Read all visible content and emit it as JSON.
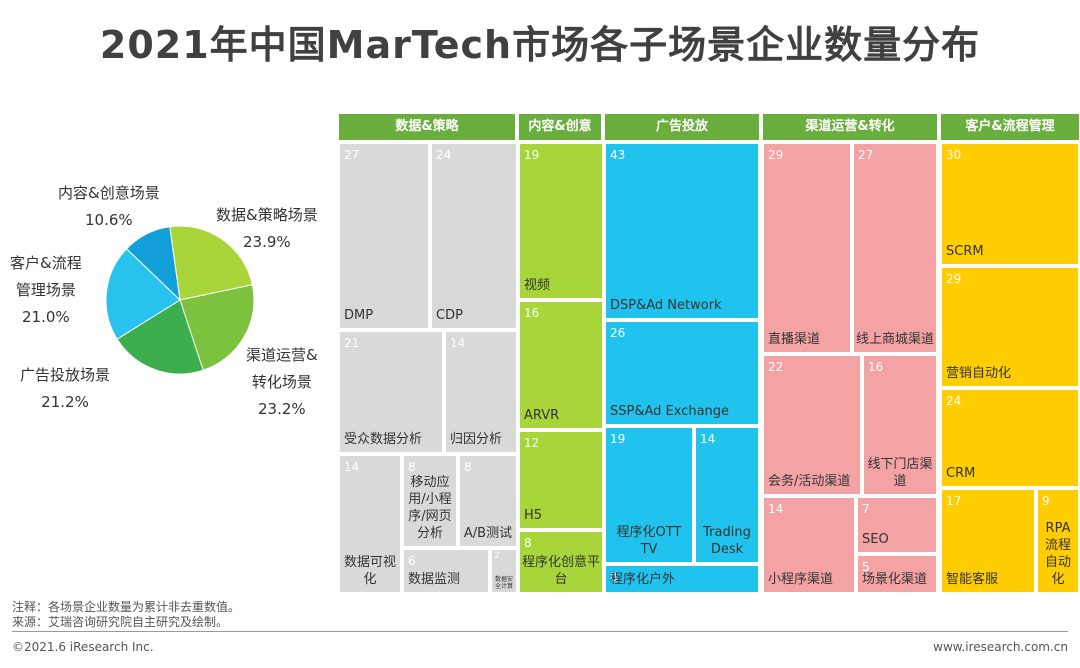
{
  "title": "2021年中国MarTech市场各子场景企业数量分布",
  "chart_data": [
    {
      "type": "pie",
      "slices": [
        {
          "name": "数据&策略场景",
          "value": 23.9,
          "label": "23.9%",
          "color": "#A8D63A"
        },
        {
          "name": "渠道运营&转化场景",
          "value": 23.2,
          "label": "23.2%",
          "color": "#7CC23F"
        },
        {
          "name": "广告投放场景",
          "value": 21.2,
          "label": "21.2%",
          "color": "#3DAE4E"
        },
        {
          "name": "客户&流程管理场景",
          "value": 21.0,
          "label": "21.0%",
          "color": "#27C3EE"
        },
        {
          "name": "内容&创意场景",
          "value": 10.6,
          "label": "10.6%",
          "color": "#129FD9"
        }
      ],
      "labels": {
        "content": [
          "内容&创意场景",
          "10.6%"
        ],
        "data": [
          "数据&策略场景",
          "23.9%"
        ],
        "customer": [
          "客户&流程",
          "管理场景",
          "21.0%"
        ],
        "ad": [
          "广告投放场景",
          "21.2%"
        ],
        "channel": [
          "渠道运营&",
          "转化场景",
          "23.2%"
        ]
      }
    },
    {
      "type": "treemap",
      "groups": [
        {
          "name": "数据&策略",
          "color": "#6AAF3D",
          "items": [
            {
              "label": "DMP",
              "value": 27
            },
            {
              "label": "CDP",
              "value": 24
            },
            {
              "label": "受众数据分析",
              "value": 21
            },
            {
              "label": "归因分析",
              "value": 14
            },
            {
              "label": "数据可视化",
              "value": 14
            },
            {
              "label": "移动应用/小程序/网页分析",
              "value": 8
            },
            {
              "label": "A/B测试",
              "value": 8
            },
            {
              "label": "数据监测",
              "value": 6
            },
            {
              "label": "数据安全计算",
              "value": 2
            }
          ]
        },
        {
          "name": "内容&创意",
          "color": "#6AAF3D",
          "items": [
            {
              "label": "视频",
              "value": 19
            },
            {
              "label": "ARVR",
              "value": 16
            },
            {
              "label": "H5",
              "value": 12
            },
            {
              "label": "程序化创意平台",
              "value": 8
            }
          ]
        },
        {
          "name": "广告投放",
          "color": "#6AAF3D",
          "items": [
            {
              "label": "DSP&Ad Network",
              "value": 43
            },
            {
              "label": "SSP&Ad Exchange",
              "value": 26
            },
            {
              "label": "程序化OTT TV",
              "value": 19
            },
            {
              "label": "Trading Desk",
              "value": 14
            },
            {
              "label": "程序化户外",
              "value": 8
            }
          ]
        },
        {
          "name": "渠道运营&转化",
          "color": "#6AAF3D",
          "items": [
            {
              "label": "直播渠道",
              "value": 29
            },
            {
              "label": "线上商城渠道",
              "value": 27
            },
            {
              "label": "会务/活动渠道",
              "value": 22
            },
            {
              "label": "线下门店渠道",
              "value": 16
            },
            {
              "label": "小程序渠道",
              "value": 14
            },
            {
              "label": "SEO",
              "value": 7
            },
            {
              "label": "场景化渠道",
              "value": 5
            }
          ]
        },
        {
          "name": "客户&流程管理",
          "color": "#6AAF3D",
          "items": [
            {
              "label": "SCRM",
              "value": 30
            },
            {
              "label": "营销自动化",
              "value": 29
            },
            {
              "label": "CRM",
              "value": 24
            },
            {
              "label": "智能客服",
              "value": 17
            },
            {
              "label": "RPA流程自动化",
              "value": 9
            }
          ]
        }
      ]
    }
  ],
  "footer": {
    "note": "注释：各场景企业数量为累计非去重数值。",
    "source": "来源：艾瑞咨询研究院自主研究及绘制。",
    "copyright": "©2021.6 iResearch Inc.",
    "website": "www.iresearch.com.cn"
  }
}
